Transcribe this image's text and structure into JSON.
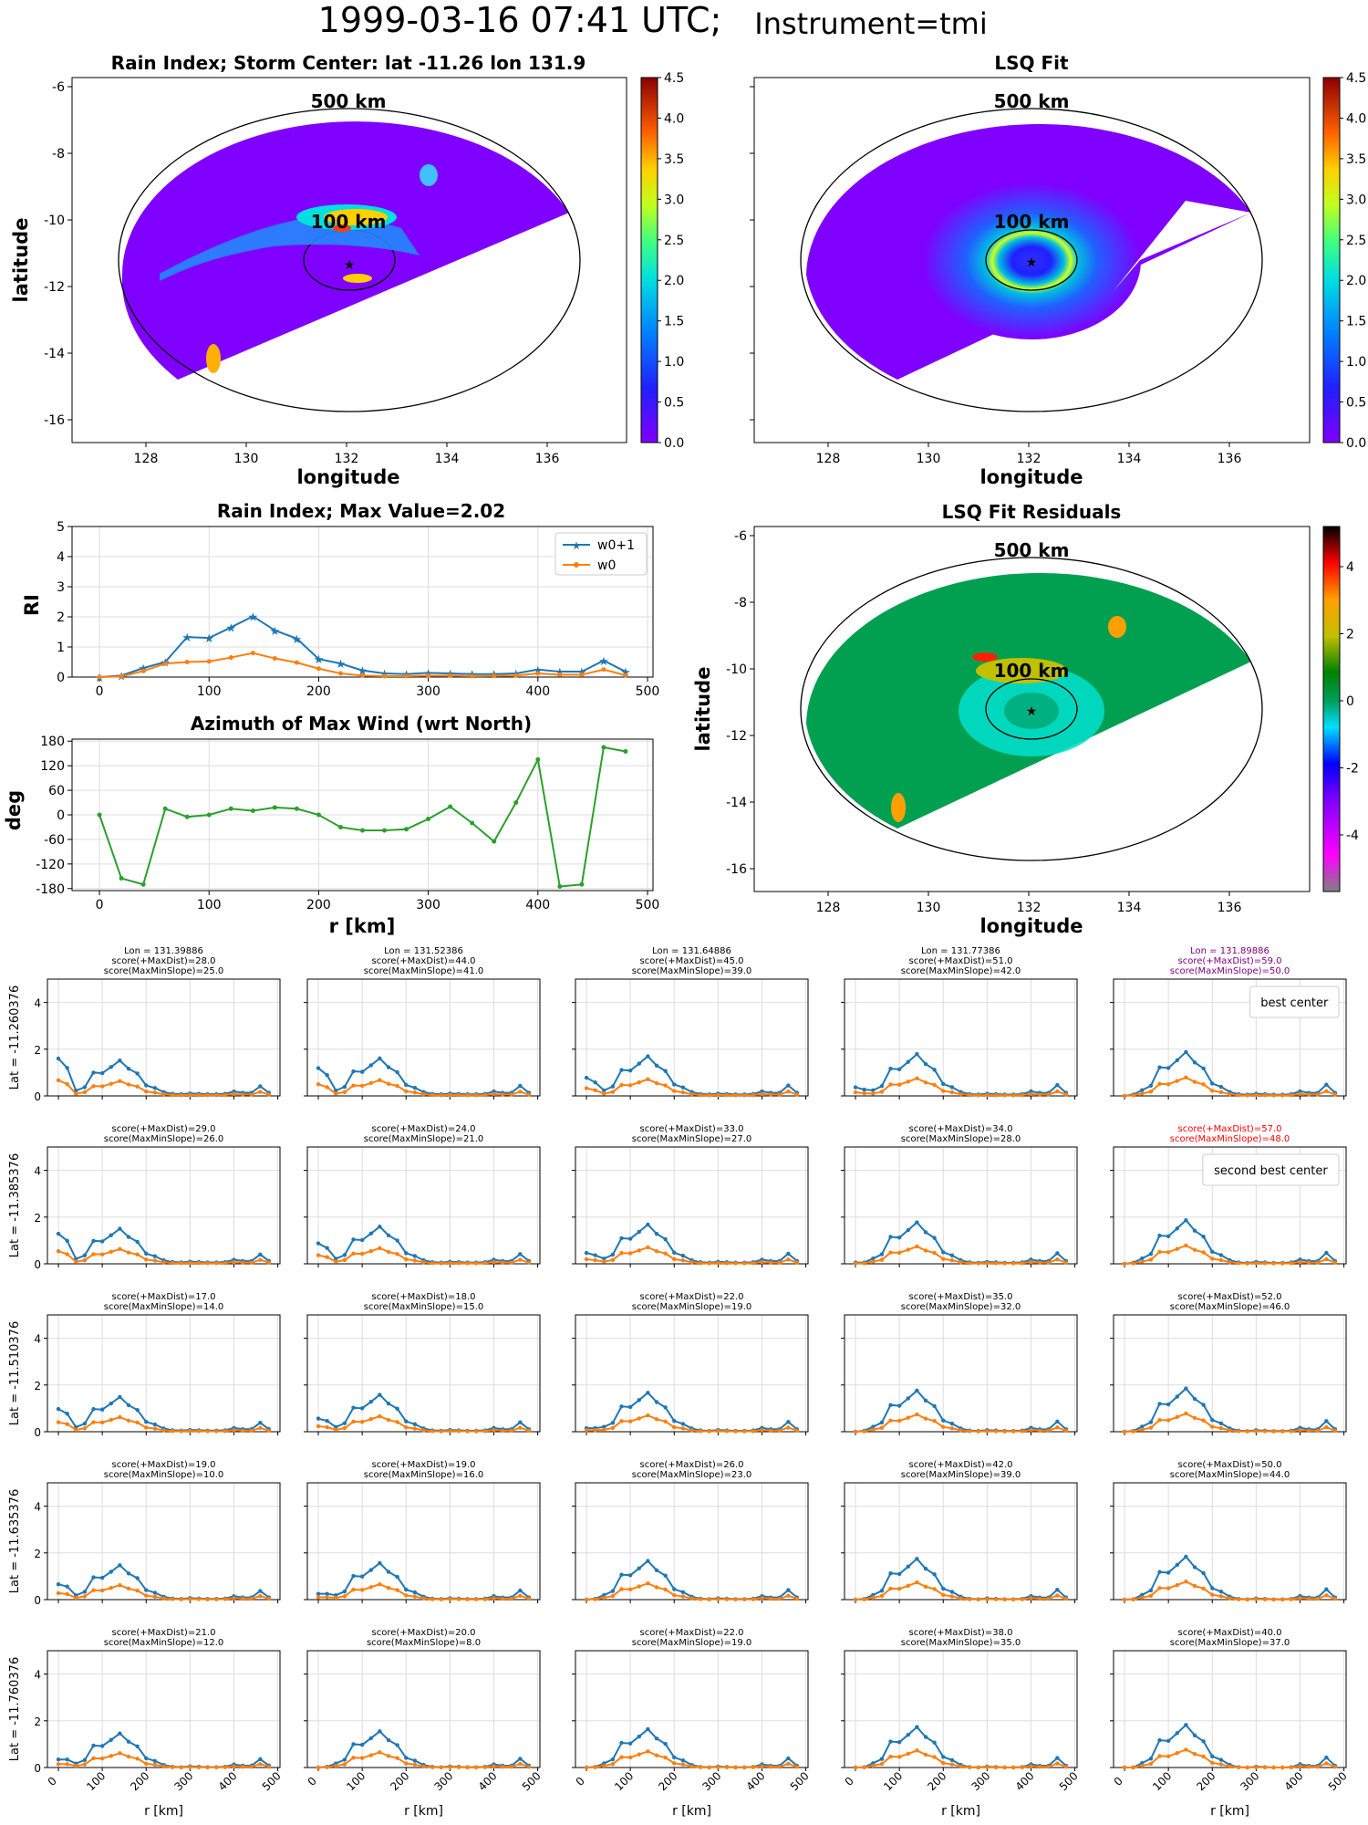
{
  "title": {
    "main": "1999-03-16 07:41 UTC;",
    "instrument": "Instrument=tmi"
  },
  "colors": {
    "w0p1": "#1f77b4",
    "w0": "#ff7f0e",
    "azimuth": "#2ca02c",
    "highlight": "#800080",
    "second": "#ff0000"
  },
  "maps": {
    "rain_index": {
      "title": "Rain Index; Storm Center: lat -11.26 lon 131.9",
      "xlabel": "longitude",
      "ylabel": "latitude",
      "xticks": [
        "128",
        "130",
        "132",
        "134",
        "136"
      ],
      "yticks": [
        "-6",
        "-8",
        "-10",
        "-12",
        "-14",
        "-16"
      ],
      "colorbar_ticks": [
        "4.5",
        "4.0",
        "3.5",
        "3.0",
        "2.5",
        "2.0",
        "1.5",
        "1.0",
        "0.5",
        "0.0"
      ],
      "ring_labels": [
        "500 km",
        "100 km"
      ]
    },
    "lsq_fit": {
      "title": "LSQ Fit",
      "xticks": [
        "128",
        "130",
        "132",
        "134",
        "136"
      ],
      "colorbar_ticks": [
        "4.5",
        "4.0",
        "3.5",
        "3.0",
        "2.5",
        "2.0",
        "1.5",
        "1.0",
        "0.5",
        "0.0"
      ],
      "ring_labels": [
        "500 km",
        "100 km"
      ]
    },
    "residuals": {
      "title": "LSQ Fit Residuals",
      "xlabel": "longitude",
      "ylabel": "latitude",
      "xticks": [
        "128",
        "130",
        "132",
        "134",
        "136"
      ],
      "yticks": [
        "-6",
        "-8",
        "-10",
        "-12",
        "-14",
        "-16"
      ],
      "colorbar_ticks": [
        "4",
        "2",
        "0",
        "-2",
        "-4"
      ],
      "ring_labels": [
        "500 km",
        "100 km"
      ]
    }
  },
  "chart_data": [
    {
      "type": "line",
      "title": "Rain Index; Max Value=2.02",
      "ylabel": "RI",
      "xlim": [
        -25,
        505
      ],
      "ylim": [
        0,
        5
      ],
      "xticks": [
        0,
        100,
        200,
        300,
        400,
        500
      ],
      "yticks": [
        0,
        1,
        2,
        3,
        4,
        5
      ],
      "x": [
        0,
        20,
        40,
        60,
        80,
        100,
        120,
        140,
        160,
        180,
        200,
        220,
        240,
        260,
        280,
        300,
        320,
        340,
        360,
        380,
        400,
        420,
        440,
        460,
        480
      ],
      "series": [
        {
          "name": "w0+1",
          "values": [
            0,
            0.05,
            0.3,
            0.5,
            1.33,
            1.3,
            1.65,
            2.02,
            1.55,
            1.28,
            0.6,
            0.45,
            0.22,
            0.12,
            0.1,
            0.14,
            0.12,
            0.1,
            0.1,
            0.12,
            0.25,
            0.18,
            0.18,
            0.55,
            0.18
          ]
        },
        {
          "name": "w0",
          "values": [
            0,
            0.02,
            0.2,
            0.45,
            0.5,
            0.52,
            0.65,
            0.8,
            0.62,
            0.48,
            0.28,
            0.12,
            0.05,
            0.03,
            0.03,
            0.05,
            0.05,
            0.03,
            0.04,
            0.05,
            0.12,
            0.08,
            0.08,
            0.25,
            0.06
          ]
        }
      ]
    },
    {
      "type": "line",
      "title": "Azimuth of Max Wind (wrt North)",
      "xlabel": "r [km]",
      "ylabel": "deg",
      "xlim": [
        -25,
        505
      ],
      "ylim": [
        -185,
        185
      ],
      "xticks": [
        0,
        100,
        200,
        300,
        400,
        500
      ],
      "yticks": [
        180,
        120,
        60,
        0,
        -60,
        -120,
        -180
      ],
      "x": [
        0,
        20,
        40,
        60,
        80,
        100,
        120,
        140,
        160,
        180,
        200,
        220,
        240,
        260,
        280,
        300,
        320,
        340,
        360,
        380,
        400,
        420,
        440,
        460,
        480
      ],
      "series": [
        {
          "name": "",
          "values": [
            0,
            -155,
            -170,
            15,
            -5,
            0,
            15,
            10,
            18,
            15,
            0,
            -30,
            -38,
            -38,
            -35,
            -10,
            20,
            -20,
            -65,
            30,
            135,
            -175,
            -170,
            165,
            155
          ]
        }
      ]
    }
  ],
  "grid": {
    "xlabel": "r [km]",
    "rows": [
      {
        "lat": "Lat = -11.260376",
        "cells": [
          {
            "head": [
              "Lon = 131.39886",
              "score(+MaxDist)=28.0",
              "score(MaxMinSlope)=25.0"
            ]
          },
          {
            "head": [
              "Lon = 131.52386",
              "score(+MaxDist)=44.0",
              "score(MaxMinSlope)=41.0"
            ]
          },
          {
            "head": [
              "Lon = 131.64886",
              "score(+MaxDist)=45.0",
              "score(MaxMinSlope)=39.0"
            ]
          },
          {
            "head": [
              "Lon = 131.77386",
              "score(+MaxDist)=51.0",
              "score(MaxMinSlope)=42.0"
            ]
          },
          {
            "head": [
              "Lon = 131.89886",
              "score(+MaxDist)=59.0",
              "score(MaxMinSlope)=50.0"
            ],
            "color": "highlight",
            "legend": "best center"
          }
        ]
      },
      {
        "lat": "Lat = -11.385376",
        "cells": [
          {
            "head": [
              "score(+MaxDist)=29.0",
              "score(MaxMinSlope)=26.0"
            ]
          },
          {
            "head": [
              "score(+MaxDist)=24.0",
              "score(MaxMinSlope)=21.0"
            ]
          },
          {
            "head": [
              "score(+MaxDist)=33.0",
              "score(MaxMinSlope)=27.0"
            ]
          },
          {
            "head": [
              "score(+MaxDist)=34.0",
              "score(MaxMinSlope)=28.0"
            ]
          },
          {
            "head": [
              "score(+MaxDist)=57.0",
              "score(MaxMinSlope)=48.0"
            ],
            "color": "second",
            "legend": "second best center"
          }
        ]
      },
      {
        "lat": "Lat = -11.510376",
        "cells": [
          {
            "head": [
              "score(+MaxDist)=17.0",
              "score(MaxMinSlope)=14.0"
            ]
          },
          {
            "head": [
              "score(+MaxDist)=18.0",
              "score(MaxMinSlope)=15.0"
            ]
          },
          {
            "head": [
              "score(+MaxDist)=22.0",
              "score(MaxMinSlope)=19.0"
            ]
          },
          {
            "head": [
              "score(+MaxDist)=35.0",
              "score(MaxMinSlope)=32.0"
            ]
          },
          {
            "head": [
              "score(+MaxDist)=52.0",
              "score(MaxMinSlope)=46.0"
            ]
          }
        ]
      },
      {
        "lat": "Lat = -11.635376",
        "cells": [
          {
            "head": [
              "score(+MaxDist)=19.0",
              "score(MaxMinSlope)=10.0"
            ]
          },
          {
            "head": [
              "score(+MaxDist)=19.0",
              "score(MaxMinSlope)=16.0"
            ]
          },
          {
            "head": [
              "score(+MaxDist)=26.0",
              "score(MaxMinSlope)=23.0"
            ]
          },
          {
            "head": [
              "score(+MaxDist)=42.0",
              "score(MaxMinSlope)=39.0"
            ]
          },
          {
            "head": [
              "score(+MaxDist)=50.0",
              "score(MaxMinSlope)=44.0"
            ]
          }
        ]
      },
      {
        "lat": "Lat = -11.760376",
        "cells": [
          {
            "head": [
              "score(+MaxDist)=21.0",
              "score(MaxMinSlope)=12.0"
            ]
          },
          {
            "head": [
              "score(+MaxDist)=20.0",
              "score(MaxMinSlope)=8.0"
            ]
          },
          {
            "head": [
              "score(+MaxDist)=22.0",
              "score(MaxMinSlope)=19.0"
            ]
          },
          {
            "head": [
              "score(+MaxDist)=38.0",
              "score(MaxMinSlope)=35.0"
            ]
          },
          {
            "head": [
              "score(+MaxDist)=40.0",
              "score(MaxMinSlope)=37.0"
            ]
          }
        ]
      }
    ]
  }
}
